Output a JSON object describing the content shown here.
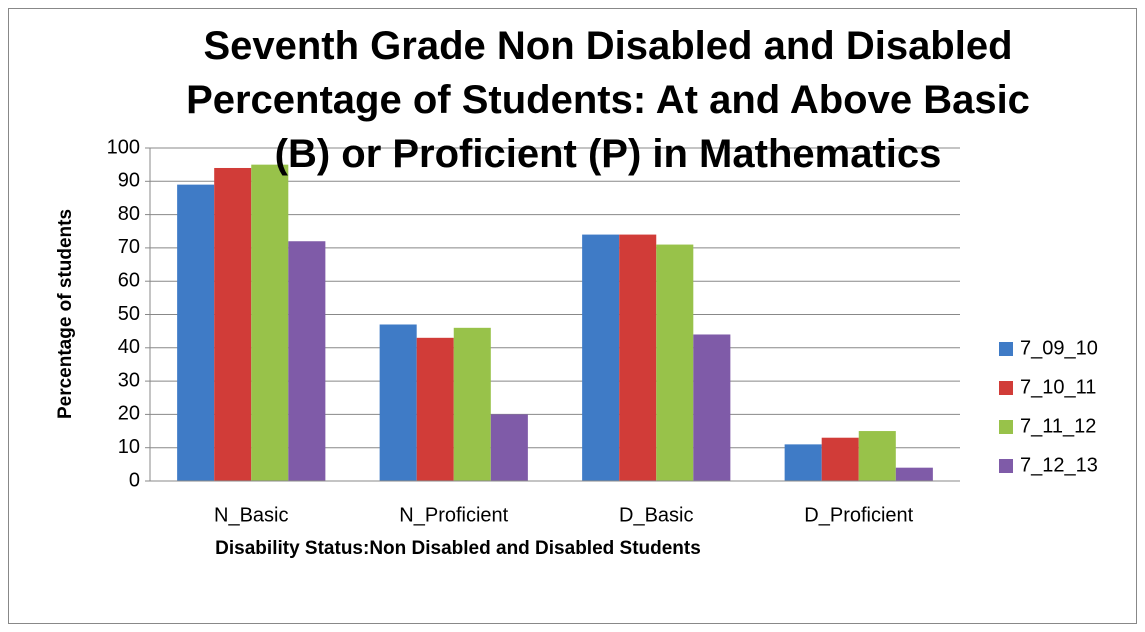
{
  "chart_data": {
    "type": "bar",
    "title": "Seventh Grade Non Disabled and Disabled Percentage of Students: At and Above Basic (B) or Proficient (P) in Mathematics",
    "x_label": "Disability Status:Non Disabled and Disabled Students",
    "y_label": "Percentage of students",
    "categories": [
      "N_Basic",
      "N_Proficient",
      "D_Basic",
      "D_Proficient"
    ],
    "series": [
      {
        "name": "7_09_10",
        "color": "#3f7bc6",
        "values": [
          89,
          47,
          74,
          11
        ]
      },
      {
        "name": "7_10_11",
        "color": "#d13c38",
        "values": [
          94,
          43,
          74,
          13
        ]
      },
      {
        "name": "7_11_12",
        "color": "#98c24a",
        "values": [
          95,
          46,
          71,
          15
        ]
      },
      {
        "name": "7_12_13",
        "color": "#7f5ba8",
        "values": [
          72,
          20,
          44,
          4
        ]
      }
    ],
    "ylim": [
      0,
      100
    ],
    "yticks": [
      0,
      10,
      20,
      30,
      40,
      50,
      60,
      70,
      80,
      90,
      100
    ],
    "grid": true,
    "legend": "right"
  }
}
